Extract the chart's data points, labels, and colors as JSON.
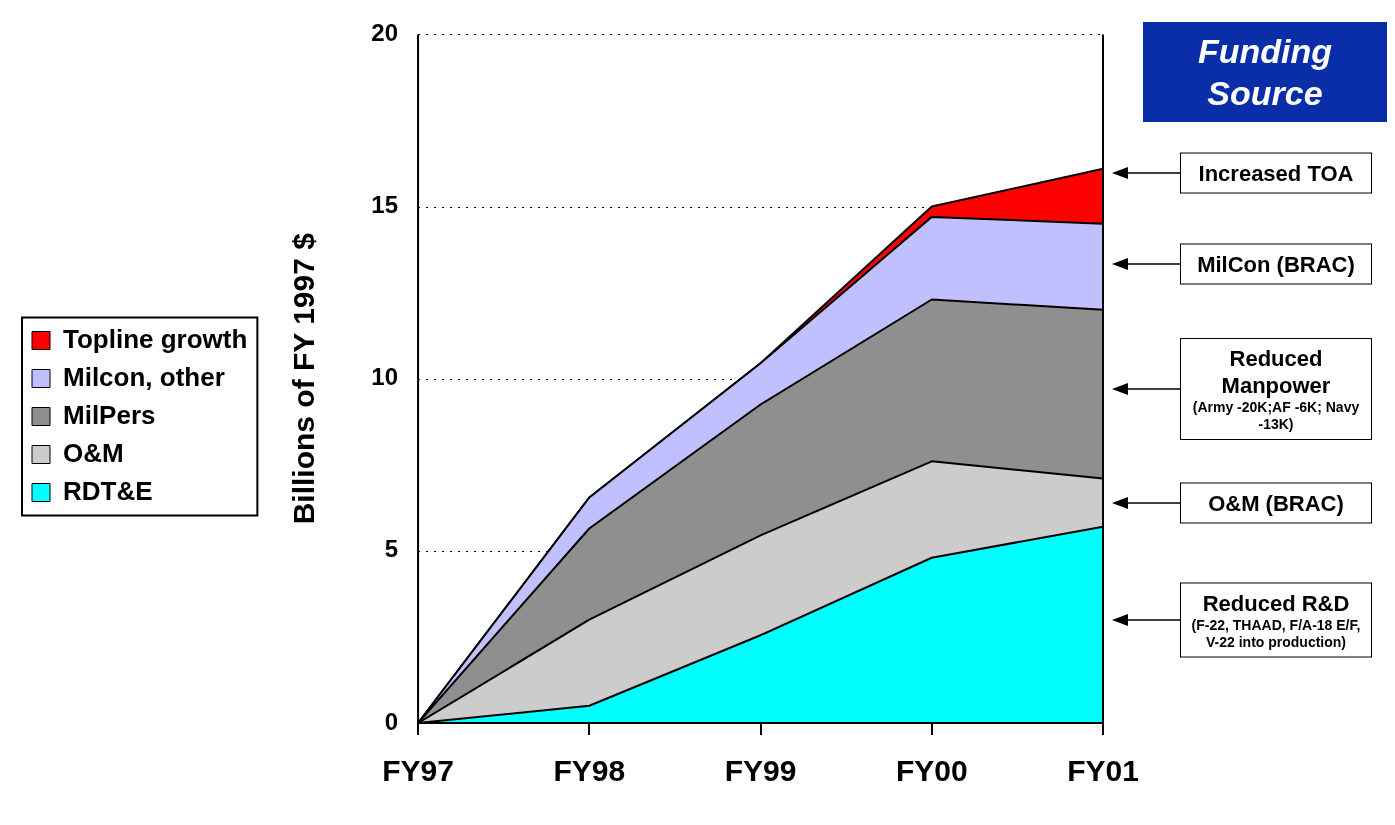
{
  "chart_data": {
    "type": "area",
    "title": "Funding Source",
    "ylabel": "Billions of FY 1997 $",
    "categories": [
      "FY97",
      "FY98",
      "FY99",
      "FY00",
      "FY01"
    ],
    "stacked": true,
    "series": [
      {
        "name": "RDT&E",
        "color": "#00ffff",
        "values": [
          0,
          0.5,
          2.55,
          4.8,
          5.7
        ]
      },
      {
        "name": "O&M",
        "color": "#cccccc",
        "values": [
          0,
          2.5,
          2.9,
          2.8,
          1.4
        ]
      },
      {
        "name": "MilPers",
        "color": "#8f8f8f",
        "values": [
          0,
          2.65,
          3.8,
          4.7,
          4.9
        ]
      },
      {
        "name": "Milcon, other",
        "color": "#c0c0ff",
        "values": [
          0,
          0.9,
          1.2,
          2.4,
          2.5
        ]
      },
      {
        "name": "Topline growth",
        "color": "#ff0000",
        "values": [
          0,
          0,
          0,
          0.3,
          1.6
        ]
      }
    ],
    "ylim": [
      0,
      20
    ],
    "yticks": [
      0,
      5,
      10,
      15,
      20
    ],
    "grid": "y",
    "legend": "left",
    "annotations": [
      "Increased TOA",
      "MilCon (BRAC)",
      "Reduced Manpower (Army  -20K;AF -6K; Navy   -13K)",
      "O&M (BRAC)",
      "Reduced R&D (F-22, THAAD, F/A-18 E/F, V-22 into production)"
    ]
  }
}
